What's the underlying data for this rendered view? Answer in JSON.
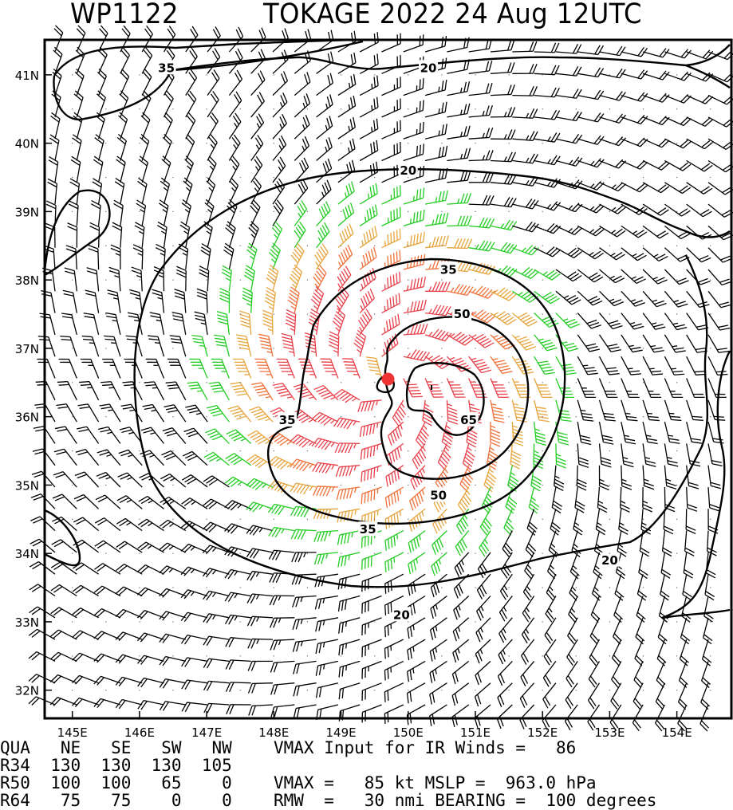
{
  "header": {
    "storm_id": "WP1122",
    "title": "TOKAGE 2022 24 Aug 12UTC"
  },
  "chart_data": {
    "type": "wind-barb-map",
    "title": "TOKAGE 2022 24 Aug 12UTC",
    "lon_range": [
      144.6,
      154.8
    ],
    "lat_range": [
      31.6,
      41.5
    ],
    "x_ticks": [
      "145E",
      "146E",
      "147E",
      "148E",
      "149E",
      "150E",
      "151E",
      "152E",
      "153E",
      "154E"
    ],
    "y_ticks": [
      "32N",
      "33N",
      "34N",
      "35N",
      "36N",
      "37N",
      "38N",
      "39N",
      "40N",
      "41N"
    ],
    "center": {
      "lon": 149.7,
      "lat": 36.55
    },
    "contour_levels_kt": [
      20,
      35,
      50,
      65
    ],
    "contour_labels": [
      {
        "text": "20",
        "lon": 150.3,
        "lat": 41.1
      },
      {
        "text": "20",
        "lon": 150.0,
        "lat": 39.6
      },
      {
        "text": "20",
        "lon": 153.0,
        "lat": 33.9
      },
      {
        "text": "20",
        "lon": 149.9,
        "lat": 33.1
      },
      {
        "text": "35",
        "lon": 146.4,
        "lat": 41.1
      },
      {
        "text": "35",
        "lon": 150.6,
        "lat": 38.15
      },
      {
        "text": "35",
        "lon": 148.2,
        "lat": 35.95
      },
      {
        "text": "35",
        "lon": 149.4,
        "lat": 34.35
      },
      {
        "text": "50",
        "lon": 150.8,
        "lat": 37.5
      },
      {
        "text": "50",
        "lon": 150.45,
        "lat": 34.85
      },
      {
        "text": "65",
        "lon": 150.9,
        "lat": 35.95
      }
    ],
    "wind_speed_colors": {
      "below_34": "#000000",
      "34_to_49": "#22cc22",
      "50_to_63": "#e6a43c",
      "64_plus": "#f07038",
      "high": "#e8404a"
    },
    "center_marker_color": "#ee3333",
    "vmax_input_ir_kt": 86,
    "vmax_kt": 85,
    "mslp_hpa": 963.0,
    "rmw_nmi": 30,
    "bearing_deg": 100
  },
  "footer": {
    "qua_row": "QUA   NE   SE   SW   NW",
    "r34_row": "R34  130  130  130  105",
    "r50_row": "R50  100  100   65    0",
    "r64_row": "R64   75   75    0    0",
    "vmax_input_line": "VMAX Input for IR Winds =   86",
    "vmax_line": "VMAX =   85 kt MSLP =  963.0 hPa",
    "rmw_line": "RMW  =   30 nmi BEARING =  100 degrees"
  }
}
